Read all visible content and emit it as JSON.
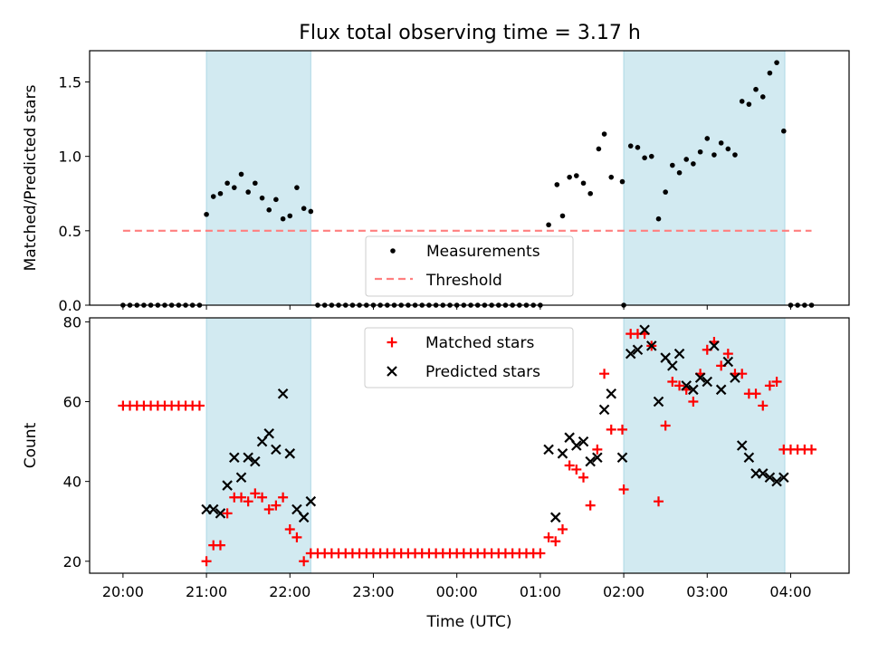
{
  "title": "Flux total observing time = 3.17 h",
  "chart_data": [
    {
      "type": "scatter",
      "ylabel": "Matched/Predicted stars",
      "xlim": [
        -0.4,
        8.7
      ],
      "ylim": [
        0,
        1.71
      ],
      "yticks": [
        0.0,
        0.5,
        1.0,
        1.5
      ],
      "ytick_labels": [
        "0.0",
        "0.5",
        "1.0",
        "1.5"
      ],
      "threshold": {
        "y": 0.5,
        "x_start": 0.0,
        "x_end": 8.25,
        "color": "#ff7f7f"
      },
      "observing_windows": [
        [
          1.0,
          2.25
        ],
        [
          6.0,
          7.93
        ]
      ],
      "window_color": "#add8e6",
      "series": [
        {
          "name": "Measurements",
          "color": "#000000",
          "points": [
            [
              0.0,
              0
            ],
            [
              0.083,
              0
            ],
            [
              0.167,
              0
            ],
            [
              0.25,
              0
            ],
            [
              0.333,
              0
            ],
            [
              0.417,
              0
            ],
            [
              0.5,
              0
            ],
            [
              0.583,
              0
            ],
            [
              0.667,
              0
            ],
            [
              0.75,
              0
            ],
            [
              0.833,
              0
            ],
            [
              0.917,
              0
            ],
            [
              1.0,
              0.61
            ],
            [
              1.083,
              0.73
            ],
            [
              1.167,
              0.75
            ],
            [
              1.25,
              0.82
            ],
            [
              1.333,
              0.79
            ],
            [
              1.417,
              0.88
            ],
            [
              1.5,
              0.76
            ],
            [
              1.583,
              0.82
            ],
            [
              1.667,
              0.72
            ],
            [
              1.75,
              0.64
            ],
            [
              1.833,
              0.71
            ],
            [
              1.917,
              0.58
            ],
            [
              2.0,
              0.6
            ],
            [
              2.083,
              0.79
            ],
            [
              2.167,
              0.65
            ],
            [
              2.25,
              0.63
            ],
            [
              2.333,
              0
            ],
            [
              2.417,
              0
            ],
            [
              2.5,
              0
            ],
            [
              2.583,
              0
            ],
            [
              2.667,
              0
            ],
            [
              2.75,
              0
            ],
            [
              2.833,
              0
            ],
            [
              2.917,
              0
            ],
            [
              3.0,
              0
            ],
            [
              3.083,
              0
            ],
            [
              3.167,
              0
            ],
            [
              3.25,
              0
            ],
            [
              3.333,
              0
            ],
            [
              3.417,
              0
            ],
            [
              3.5,
              0
            ],
            [
              3.583,
              0
            ],
            [
              3.667,
              0
            ],
            [
              3.75,
              0
            ],
            [
              3.833,
              0
            ],
            [
              3.917,
              0
            ],
            [
              4.0,
              0
            ],
            [
              4.083,
              0
            ],
            [
              4.167,
              0
            ],
            [
              4.25,
              0
            ],
            [
              4.333,
              0
            ],
            [
              4.417,
              0
            ],
            [
              4.5,
              0
            ],
            [
              4.583,
              0
            ],
            [
              4.667,
              0
            ],
            [
              4.75,
              0
            ],
            [
              4.833,
              0
            ],
            [
              4.917,
              0
            ],
            [
              5.0,
              0
            ],
            [
              5.1,
              0.54
            ],
            [
              5.2,
              0.81
            ],
            [
              5.267,
              0.6
            ],
            [
              5.35,
              0.86
            ],
            [
              5.433,
              0.87
            ],
            [
              5.517,
              0.82
            ],
            [
              5.6,
              0.75
            ],
            [
              5.7,
              1.05
            ],
            [
              5.767,
              1.15
            ],
            [
              5.85,
              0.86
            ],
            [
              5.983,
              0.83
            ],
            [
              6.0,
              0
            ],
            [
              6.083,
              1.07
            ],
            [
              6.167,
              1.06
            ],
            [
              6.25,
              0.99
            ],
            [
              6.333,
              1.0
            ],
            [
              6.417,
              0.58
            ],
            [
              6.5,
              0.76
            ],
            [
              6.583,
              0.94
            ],
            [
              6.667,
              0.89
            ],
            [
              6.75,
              0.98
            ],
            [
              6.833,
              0.95
            ],
            [
              6.917,
              1.03
            ],
            [
              7.0,
              1.12
            ],
            [
              7.083,
              1.01
            ],
            [
              7.167,
              1.09
            ],
            [
              7.25,
              1.05
            ],
            [
              7.333,
              1.01
            ],
            [
              7.417,
              1.37
            ],
            [
              7.5,
              1.35
            ],
            [
              7.583,
              1.45
            ],
            [
              7.667,
              1.4
            ],
            [
              7.75,
              1.56
            ],
            [
              7.833,
              1.63
            ],
            [
              7.917,
              1.17
            ],
            [
              8.0,
              0
            ],
            [
              8.083,
              0
            ],
            [
              8.167,
              0
            ],
            [
              8.25,
              0
            ]
          ]
        }
      ],
      "legend": {
        "placement": "lower-center",
        "entries": [
          "Measurements",
          "Threshold"
        ]
      }
    },
    {
      "type": "scatter",
      "xlabel": "Time (UTC)",
      "ylabel": "Count",
      "xlim": [
        -0.4,
        8.7
      ],
      "ylim": [
        17,
        81
      ],
      "yticks": [
        20,
        40,
        60,
        80
      ],
      "ytick_labels": [
        "20",
        "40",
        "60",
        "80"
      ],
      "xticks": [
        0,
        1,
        2,
        3,
        4,
        5,
        6,
        7,
        8
      ],
      "xtick_labels": [
        "20:00",
        "21:00",
        "22:00",
        "23:00",
        "00:00",
        "01:00",
        "02:00",
        "03:00",
        "04:00"
      ],
      "observing_windows": [
        [
          1.0,
          2.25
        ],
        [
          6.0,
          7.93
        ]
      ],
      "window_color": "#add8e6",
      "series": [
        {
          "name": "Matched stars",
          "marker": "+",
          "color": "#ff0000",
          "points": [
            [
              0.0,
              59
            ],
            [
              0.083,
              59
            ],
            [
              0.167,
              59
            ],
            [
              0.25,
              59
            ],
            [
              0.333,
              59
            ],
            [
              0.417,
              59
            ],
            [
              0.5,
              59
            ],
            [
              0.583,
              59
            ],
            [
              0.667,
              59
            ],
            [
              0.75,
              59
            ],
            [
              0.833,
              59
            ],
            [
              0.917,
              59
            ],
            [
              1.0,
              20
            ],
            [
              1.083,
              24
            ],
            [
              1.167,
              24
            ],
            [
              1.25,
              32
            ],
            [
              1.333,
              36
            ],
            [
              1.417,
              36
            ],
            [
              1.5,
              35
            ],
            [
              1.583,
              37
            ],
            [
              1.667,
              36
            ],
            [
              1.75,
              33
            ],
            [
              1.833,
              34
            ],
            [
              1.917,
              36
            ],
            [
              2.0,
              28
            ],
            [
              2.083,
              26
            ],
            [
              2.167,
              20
            ],
            [
              2.25,
              22
            ],
            [
              2.333,
              22
            ],
            [
              2.417,
              22
            ],
            [
              2.5,
              22
            ],
            [
              2.583,
              22
            ],
            [
              2.667,
              22
            ],
            [
              2.75,
              22
            ],
            [
              2.833,
              22
            ],
            [
              2.917,
              22
            ],
            [
              3.0,
              22
            ],
            [
              3.083,
              22
            ],
            [
              3.167,
              22
            ],
            [
              3.25,
              22
            ],
            [
              3.333,
              22
            ],
            [
              3.417,
              22
            ],
            [
              3.5,
              22
            ],
            [
              3.583,
              22
            ],
            [
              3.667,
              22
            ],
            [
              3.75,
              22
            ],
            [
              3.833,
              22
            ],
            [
              3.917,
              22
            ],
            [
              4.0,
              22
            ],
            [
              4.083,
              22
            ],
            [
              4.167,
              22
            ],
            [
              4.25,
              22
            ],
            [
              4.333,
              22
            ],
            [
              4.417,
              22
            ],
            [
              4.5,
              22
            ],
            [
              4.583,
              22
            ],
            [
              4.667,
              22
            ],
            [
              4.75,
              22
            ],
            [
              4.833,
              22
            ],
            [
              4.917,
              22
            ],
            [
              5.0,
              22
            ],
            [
              5.1,
              26
            ],
            [
              5.183,
              25
            ],
            [
              5.267,
              28
            ],
            [
              5.35,
              44
            ],
            [
              5.433,
              43
            ],
            [
              5.517,
              41
            ],
            [
              5.6,
              34
            ],
            [
              5.683,
              48
            ],
            [
              5.767,
              67
            ],
            [
              5.85,
              53
            ],
            [
              5.983,
              53
            ],
            [
              6.0,
              38
            ],
            [
              6.083,
              77
            ],
            [
              6.167,
              77
            ],
            [
              6.25,
              77
            ],
            [
              6.333,
              74
            ],
            [
              6.417,
              35
            ],
            [
              6.5,
              54
            ],
            [
              6.583,
              65
            ],
            [
              6.667,
              64
            ],
            [
              6.75,
              63
            ],
            [
              6.833,
              60
            ],
            [
              6.917,
              67
            ],
            [
              7.0,
              73
            ],
            [
              7.083,
              75
            ],
            [
              7.167,
              69
            ],
            [
              7.25,
              72
            ],
            [
              7.333,
              67
            ],
            [
              7.417,
              67
            ],
            [
              7.5,
              62
            ],
            [
              7.583,
              62
            ],
            [
              7.667,
              59
            ],
            [
              7.75,
              64
            ],
            [
              7.833,
              65
            ],
            [
              7.917,
              48
            ],
            [
              8.0,
              48
            ],
            [
              8.083,
              48
            ],
            [
              8.167,
              48
            ],
            [
              8.25,
              48
            ]
          ]
        },
        {
          "name": "Predicted stars",
          "marker": "x",
          "color": "#000000",
          "points": [
            [
              1.0,
              33
            ],
            [
              1.083,
              33
            ],
            [
              1.167,
              32
            ],
            [
              1.25,
              39
            ],
            [
              1.333,
              46
            ],
            [
              1.417,
              41
            ],
            [
              1.5,
              46
            ],
            [
              1.583,
              45
            ],
            [
              1.667,
              50
            ],
            [
              1.75,
              52
            ],
            [
              1.833,
              48
            ],
            [
              1.917,
              62
            ],
            [
              2.0,
              47
            ],
            [
              2.083,
              33
            ],
            [
              2.167,
              31
            ],
            [
              2.25,
              35
            ],
            [
              5.1,
              48
            ],
            [
              5.183,
              31
            ],
            [
              5.267,
              47
            ],
            [
              5.35,
              51
            ],
            [
              5.433,
              49
            ],
            [
              5.517,
              50
            ],
            [
              5.6,
              45
            ],
            [
              5.683,
              46
            ],
            [
              5.767,
              58
            ],
            [
              5.85,
              62
            ],
            [
              5.983,
              46
            ],
            [
              6.083,
              72
            ],
            [
              6.167,
              73
            ],
            [
              6.25,
              78
            ],
            [
              6.333,
              74
            ],
            [
              6.417,
              60
            ],
            [
              6.5,
              71
            ],
            [
              6.583,
              69
            ],
            [
              6.667,
              72
            ],
            [
              6.75,
              64
            ],
            [
              6.833,
              63
            ],
            [
              6.917,
              66
            ],
            [
              7.0,
              65
            ],
            [
              7.083,
              74
            ],
            [
              7.167,
              63
            ],
            [
              7.25,
              70
            ],
            [
              7.333,
              66
            ],
            [
              7.417,
              49
            ],
            [
              7.5,
              46
            ],
            [
              7.583,
              42
            ],
            [
              7.667,
              42
            ],
            [
              7.75,
              41
            ],
            [
              7.833,
              40
            ],
            [
              7.917,
              41
            ]
          ]
        }
      ],
      "legend": {
        "placement": "upper-center",
        "entries": [
          "Matched stars",
          "Predicted stars"
        ]
      }
    }
  ]
}
